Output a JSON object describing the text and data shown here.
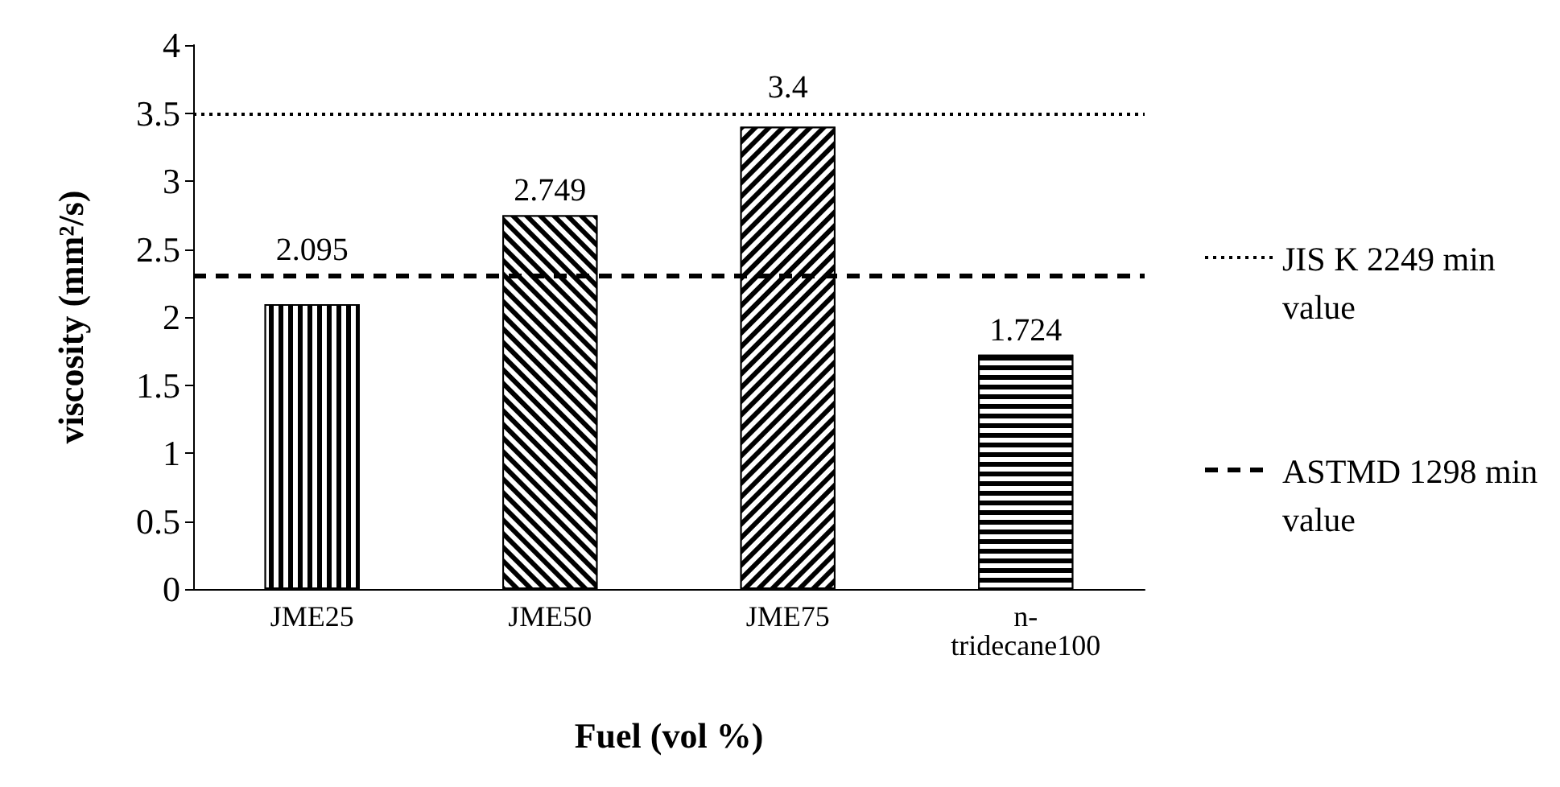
{
  "chart_data": {
    "type": "bar",
    "categories": [
      "JME25",
      "JME50",
      "JME75",
      "n-tridecane100"
    ],
    "values": [
      2.095,
      2.749,
      3.4,
      1.724
    ],
    "color": "#000000",
    "data_labels": true,
    "xlabel": "Fuel (vol %)",
    "ylabel": "viscosity (mm²/s)",
    "ylim": [
      0,
      4
    ],
    "yticks": [
      0,
      0.5,
      1,
      1.5,
      2,
      2.5,
      3,
      3.5,
      4
    ],
    "grid": false,
    "legend": "right",
    "ref_lines": [
      {
        "axis": "y",
        "value": 3.5,
        "label": "JIS K 2249 min value",
        "line_style": "dotted",
        "color": "#000000"
      },
      {
        "axis": "y",
        "value": 2.3,
        "label": "ASTMD 1298 min value",
        "line_style": "dashed",
        "color": "#000000"
      }
    ]
  }
}
